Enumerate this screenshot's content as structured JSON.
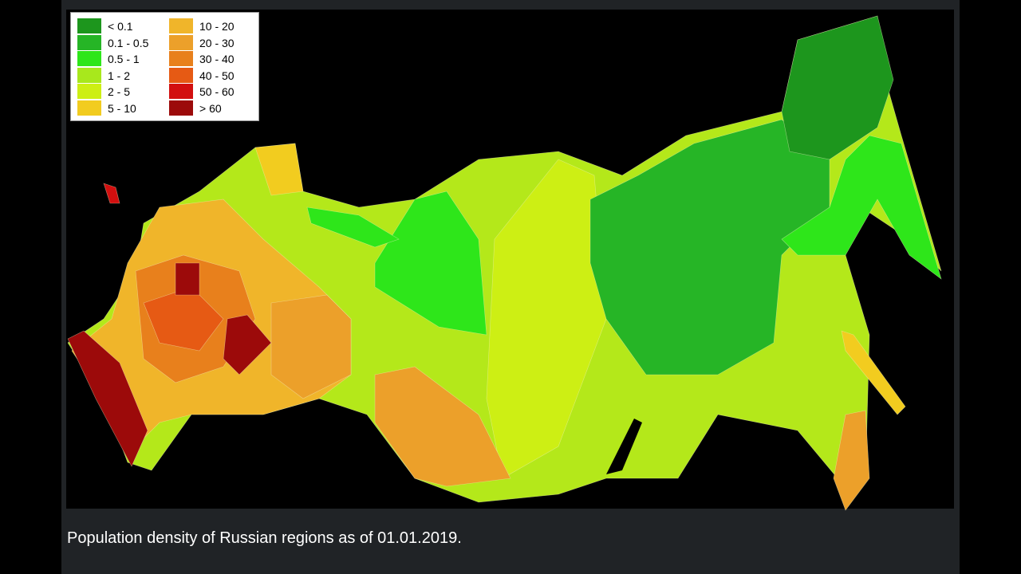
{
  "legend": {
    "items": [
      {
        "label": "< 0.1",
        "color": "#1d961d"
      },
      {
        "label": "0.1 - 0.5",
        "color": "#26b526"
      },
      {
        "label": "0.5 - 1",
        "color": "#2ee61a"
      },
      {
        "label": "1 - 2",
        "color": "#a8e81c"
      },
      {
        "label": "2 - 5",
        "color": "#cdef14"
      },
      {
        "label": "5 - 10",
        "color": "#f2cc1f"
      },
      {
        "label": "10 - 20",
        "color": "#f0b52a"
      },
      {
        "label": "20 - 30",
        "color": "#eca02a"
      },
      {
        "label": "30 - 40",
        "color": "#e8801c"
      },
      {
        "label": "40 - 50",
        "color": "#e65a14"
      },
      {
        "label": "50 - 60",
        "color": "#d20f0f"
      },
      {
        "label": "> 60",
        "color": "#9c0a0a"
      }
    ]
  },
  "caption": "Population density of Russian regions as of 01.01.2019."
}
